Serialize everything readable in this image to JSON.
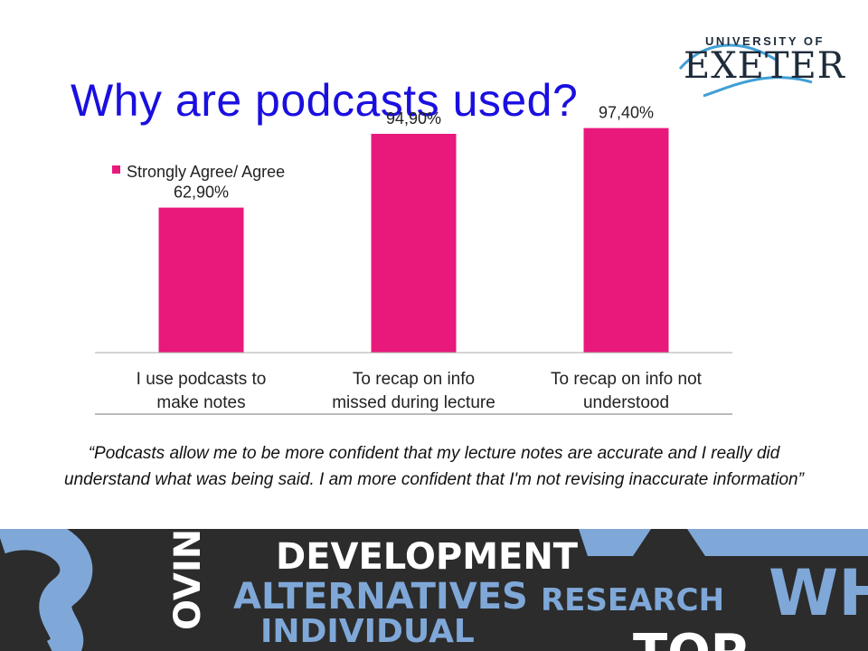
{
  "slide": {
    "title": "Why are podcasts used?",
    "logo_top": "UNIVERSITY OF",
    "logo_main": "EXETER",
    "quote": "“Podcasts allow me to be more confident that my lecture notes are accurate and I really did understand what was being said. I am more confident that I'm not revising inaccurate information”"
  },
  "banner": {
    "words": [
      "DEVELOPMENT",
      "ALTERNATIVES",
      "RESEARCH",
      "INDIVIDUAL",
      "OVING",
      "WH",
      "TOP"
    ]
  },
  "chart_data": {
    "type": "bar",
    "categories": [
      [
        "I use podcasts to",
        "make notes"
      ],
      [
        "To recap on info",
        "missed during lecture"
      ],
      [
        "To recap on info not",
        "understood"
      ]
    ],
    "series": [
      {
        "name": "Strongly Agree/ Agree",
        "values": [
          62.9,
          94.9,
          97.4
        ],
        "labels": [
          "62,90%",
          "94,90%",
          "97,40%"
        ],
        "color": "#e8197b"
      }
    ],
    "ylim": [
      0,
      100
    ],
    "legend_position": "top-left",
    "grid": false
  },
  "colors": {
    "title": "#1a0fe0",
    "bar": "#e8197b",
    "banner_bg": "#2c2c2c",
    "banner_white": "#ffffff",
    "banner_blue": "#7fa8d8"
  }
}
